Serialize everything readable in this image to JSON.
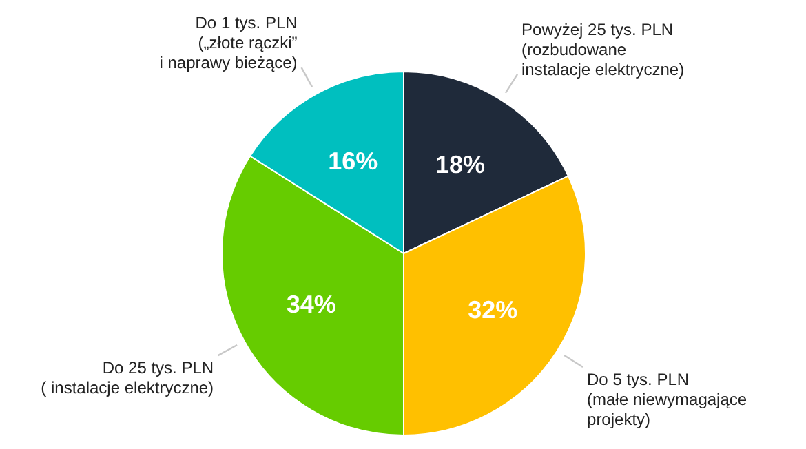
{
  "chart_data": {
    "type": "pie",
    "categories": [
      "Powyżej 25 tys. PLN\n(rozbudowane\ninstalacje elektryczne)",
      "Do 5 tys. PLN\n(małe niewymagające\nprojekty)",
      "Do 25 tys. PLN\n( instalacje elektryczne)",
      "Do 1 tys. PLN\n(„złote rączki”\ni naprawy bieżące)"
    ],
    "values": [
      18,
      32,
      34,
      16
    ],
    "colors": [
      "#1f2a3a",
      "#ffc000",
      "#66cc00",
      "#00bfbf"
    ],
    "value_labels": [
      "18%",
      "32%",
      "34%",
      "16%"
    ]
  }
}
